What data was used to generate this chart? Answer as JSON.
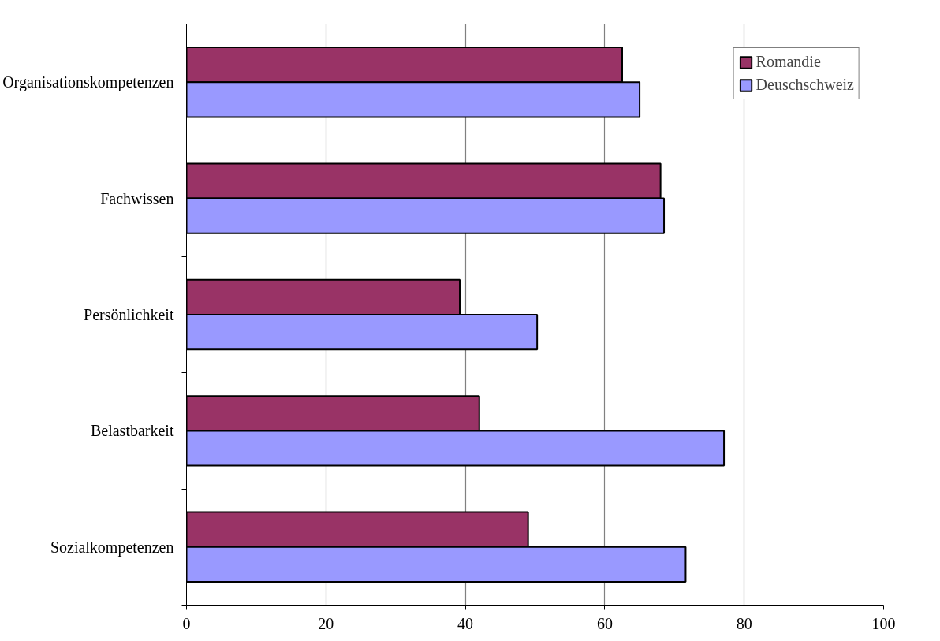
{
  "chart_data": {
    "type": "bar",
    "orientation": "horizontal",
    "categories": [
      "Organisationskompetenzen",
      "Fachwissen",
      "Persönlichkeit",
      "Belastbarkeit",
      "Sozialkompetenzen"
    ],
    "series": [
      {
        "name": "Romandie",
        "color": "#993366",
        "values": [
          62.5,
          68,
          39.2,
          42,
          49
        ]
      },
      {
        "name": "Deuschschweiz",
        "color": "#9999ff",
        "values": [
          65,
          68.5,
          50.3,
          77.1,
          71.6
        ]
      }
    ],
    "xlim": [
      0,
      100
    ],
    "xticks": [
      0,
      20,
      40,
      60,
      80,
      100
    ],
    "grid": "x",
    "legend": "top right"
  }
}
